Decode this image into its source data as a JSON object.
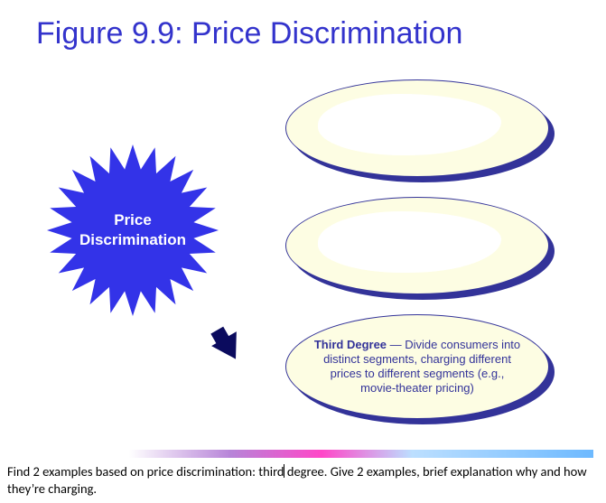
{
  "title": "Figure 9.9: Price Discrimination",
  "colors": {
    "title": "#3333cc",
    "accent": "#333399",
    "star_fill": "#3333e8",
    "ellipse_fill": "#fdfde3",
    "ellipse_shadow": "#333399",
    "arrow_fill": "#0b0b5e",
    "caption_text": "#000000",
    "background": "#ffffff"
  },
  "starburst": {
    "line1": "Price",
    "line2": "Discrimination",
    "points": 24,
    "outer_r": 95,
    "inner_r": 68,
    "fill": "#3333e8",
    "text_color": "#ffffff"
  },
  "ellipses": {
    "e1": {
      "text": ""
    },
    "e2": {
      "text": ""
    },
    "e3": {
      "bold": "Third Degree",
      "rest": " — Divide consumers into distinct segments, charging different prices to different segments (e.g., movie-theater pricing)"
    }
  },
  "gradient_bar": {
    "stops": [
      "#ffffff",
      "#ffffff",
      "#b784d8",
      "#ff46c8",
      "#bcdfff",
      "#6db9ff"
    ]
  },
  "caption": {
    "before": "Find 2 examples based on price discrimination: third",
    "after": " degree. Give 2 examples, brief explanation why and how they’re charging."
  }
}
